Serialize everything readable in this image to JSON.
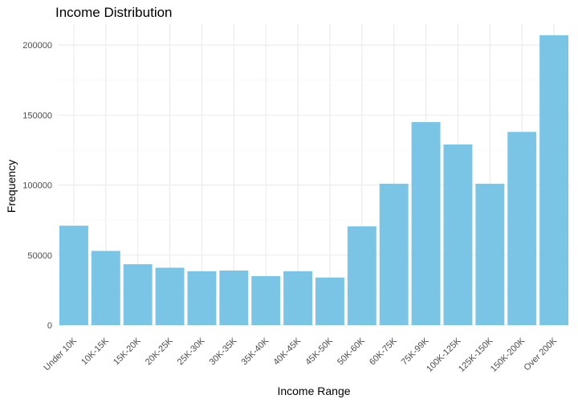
{
  "chart_data": {
    "type": "bar",
    "title": "Income Distribution",
    "xlabel": "Income Range",
    "ylabel": "Frequency",
    "categories": [
      "Under 10K",
      "10K-15K",
      "15K-20K",
      "20K-25K",
      "25K-30K",
      "30K-35K",
      "35K-40K",
      "40K-45K",
      "45K-50K",
      "50K-60K",
      "60K-75K",
      "75K-99K",
      "100K-125K",
      "125K-150K",
      "150K-200K",
      "Over 200K"
    ],
    "values": [
      71000,
      53000,
      43500,
      41000,
      38500,
      39000,
      35000,
      38500,
      34000,
      70500,
      101000,
      145000,
      129000,
      101000,
      138000,
      207000
    ],
    "ylim": [
      0,
      215000
    ],
    "yticks": [
      0,
      50000,
      100000,
      150000,
      200000
    ],
    "ytick_labels": [
      "0",
      "50000",
      "100000",
      "150000",
      "200000"
    ],
    "grid": true,
    "bar_color": "#7ac4e6"
  }
}
